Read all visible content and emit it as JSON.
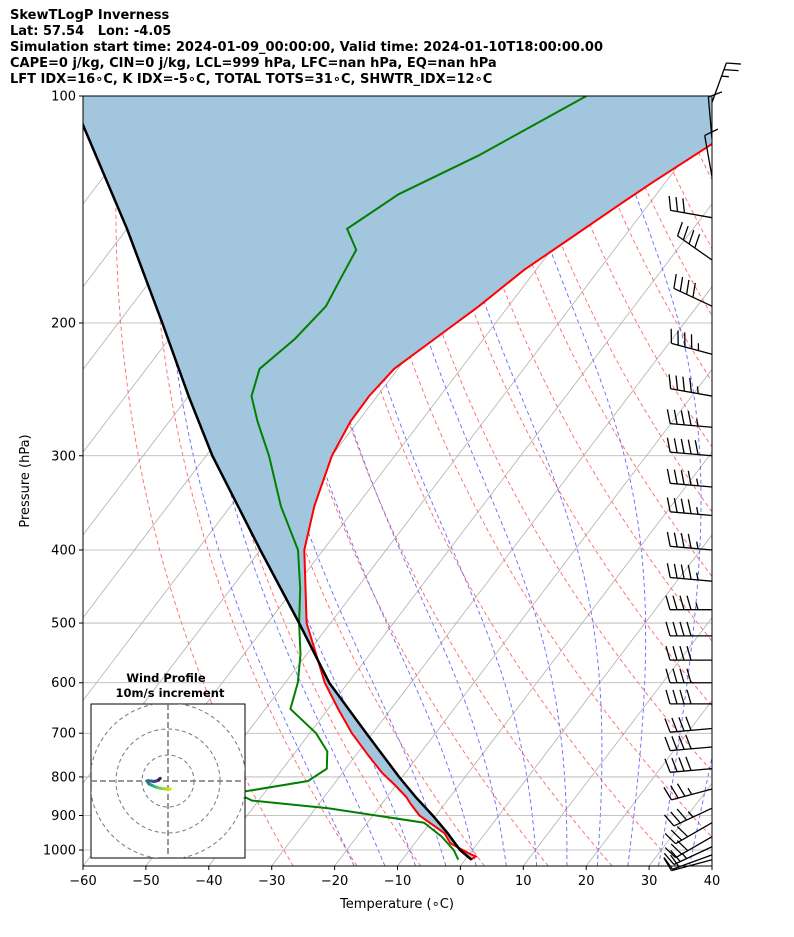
{
  "header": {
    "line1": "SkewTLogP Inverness",
    "line2": "Lat: 57.54   Lon: -4.05",
    "line3": "Simulation start time: 2024-01-09_00:00:00, Valid time: 2024-01-10T18:00:00.00",
    "line4": "CAPE=0 j/kg, CIN=0 j/kg, LCL=999 hPa, LFC=nan hPa, EQ=nan hPa",
    "line5": "LFT IDX=16∘C, K IDX=-5∘C, TOTAL TOTS=31∘C, SHWTR_IDX=12∘C"
  },
  "colors": {
    "temperature": "#ff0000",
    "dewpoint": "#008000",
    "parcel": "#000000",
    "shade": "#a3c6df",
    "dry_adiabat": "#ff6666",
    "moist_adiabat": "#6666ff",
    "isotherm": "#b0b0b0",
    "grid": "#b0b0b0"
  },
  "chart_data": [
    {
      "type": "line",
      "subtype": "skew-t log-p",
      "xlabel": "Temperature (∘C)",
      "ylabel": "Pressure (hPa)",
      "xlim": [
        -60,
        40
      ],
      "ylim": [
        1050,
        100
      ],
      "y_scale": "log",
      "x_ticks": [
        -60,
        -50,
        -40,
        -30,
        -20,
        -10,
        0,
        10,
        20,
        30,
        40
      ],
      "x_tick_labels": [
        "−60",
        "−50",
        "−40",
        "−30",
        "−20",
        "−10",
        "0",
        "10",
        "20",
        "30",
        "40"
      ],
      "y_ticks": [
        1000,
        900,
        800,
        700,
        600,
        500,
        400,
        300,
        200,
        100
      ],
      "y_tick_labels": [
        "1000",
        "900",
        "800",
        "700",
        "600",
        "500",
        "400",
        "300",
        "200",
        "100"
      ],
      "grid": true,
      "series": [
        {
          "role": "temperature",
          "pressure": [
            1030,
            1020,
            1010,
            980,
            950,
            900,
            870,
            850,
            820,
            790,
            750,
            700,
            650,
            600,
            500,
            400,
            350,
            300,
            270,
            250,
            230,
            210,
            190,
            170,
            155,
            140,
            130,
            120,
            110,
            100
          ],
          "values": [
            0.9,
            1.3,
            -0.2,
            -4.3,
            -6.5,
            -12.6,
            -15.3,
            -17.0,
            -20.2,
            -23.7,
            -27.9,
            -33.3,
            -38.4,
            -43.7,
            -53.8,
            -63.0,
            -66.7,
            -70.0,
            -71.2,
            -71.3,
            -70.6,
            -67.8,
            -64.7,
            -61.9,
            -58.5,
            -54.8,
            -52.0,
            -48.7,
            -45.2,
            -41.6
          ]
        },
        {
          "role": "dewpoint",
          "pressure": [
            1030,
            1000,
            960,
            920,
            880,
            860,
            840,
            810,
            780,
            740,
            700,
            650,
            600,
            550,
            500,
            450,
            400,
            350,
            300,
            270,
            250,
            230,
            210,
            190,
            175,
            160,
            150,
            135,
            120,
            100
          ],
          "values": [
            -1.1,
            -3.0,
            -6.5,
            -11.0,
            -28.0,
            -41.0,
            -44.5,
            -34.5,
            -33.0,
            -35.0,
            -39.0,
            -46.0,
            -48.0,
            -51.0,
            -55.0,
            -59.0,
            -64.0,
            -72.0,
            -80.0,
            -86.0,
            -90.0,
            -92.0,
            -90.0,
            -89.0,
            -90.0,
            -91.0,
            -95.0,
            -91.0,
            -83.0,
            -73.0
          ]
        },
        {
          "role": "parcel",
          "pressure": [
            1030,
            1000,
            950,
            900,
            850,
            800,
            700,
            600,
            500,
            400,
            300,
            250,
            200,
            150,
            100
          ],
          "values": [
            1.0,
            -2.0,
            -6.0,
            -10.5,
            -15.5,
            -20.5,
            -31.0,
            -43.0,
            -55.0,
            -70.0,
            -89.0,
            -100.0,
            -113.0,
            -130.0,
            -155.0
          ]
        }
      ],
      "wind_barbs": {
        "pressure": [
          1030,
          1015,
          990,
          960,
          920,
          880,
          830,
          780,
          730,
          690,
          640,
          600,
          560,
          520,
          480,
          440,
          400,
          360,
          330,
          300,
          275,
          250,
          220,
          190,
          165,
          145,
          128,
          114,
          102
        ],
        "speed_kt": [
          10,
          20,
          25,
          30,
          30,
          35,
          35,
          40,
          40,
          40,
          40,
          40,
          40,
          40,
          45,
          45,
          45,
          45,
          45,
          50,
          45,
          45,
          45,
          40,
          40,
          30,
          10,
          10,
          25
        ],
        "direction_deg": [
          255,
          250,
          245,
          240,
          240,
          245,
          255,
          265,
          265,
          265,
          270,
          270,
          270,
          270,
          270,
          275,
          275,
          275,
          275,
          275,
          275,
          280,
          285,
          295,
          305,
          280,
          350,
          355,
          20
        ]
      }
    },
    {
      "type": "scatter",
      "subtype": "hodograph",
      "title": "Wind Profile",
      "subtitle": "10m/s increment",
      "ring_step_ms": 10,
      "rings": [
        1,
        2,
        3
      ],
      "points_uv": [
        [
          1,
          -3
        ],
        [
          0.5,
          -3.2
        ],
        [
          -0.5,
          -3.1
        ],
        [
          -1.5,
          -3
        ],
        [
          -3,
          -2.8
        ],
        [
          -4.5,
          -2.4
        ],
        [
          -5.5,
          -2
        ],
        [
          -6.3,
          -1.6
        ],
        [
          -7.2,
          -1.2
        ],
        [
          -7.6,
          -0.8
        ],
        [
          -7.8,
          -0.3
        ],
        [
          -8,
          0
        ],
        [
          -7.5,
          0.1
        ],
        [
          -6.5,
          0
        ],
        [
          -5.5,
          -0.2
        ],
        [
          -4.5,
          0
        ],
        [
          -3.8,
          0.3
        ],
        [
          -3.5,
          0.6
        ],
        [
          -3.2,
          0.8
        ],
        [
          -3,
          1
        ]
      ]
    }
  ]
}
